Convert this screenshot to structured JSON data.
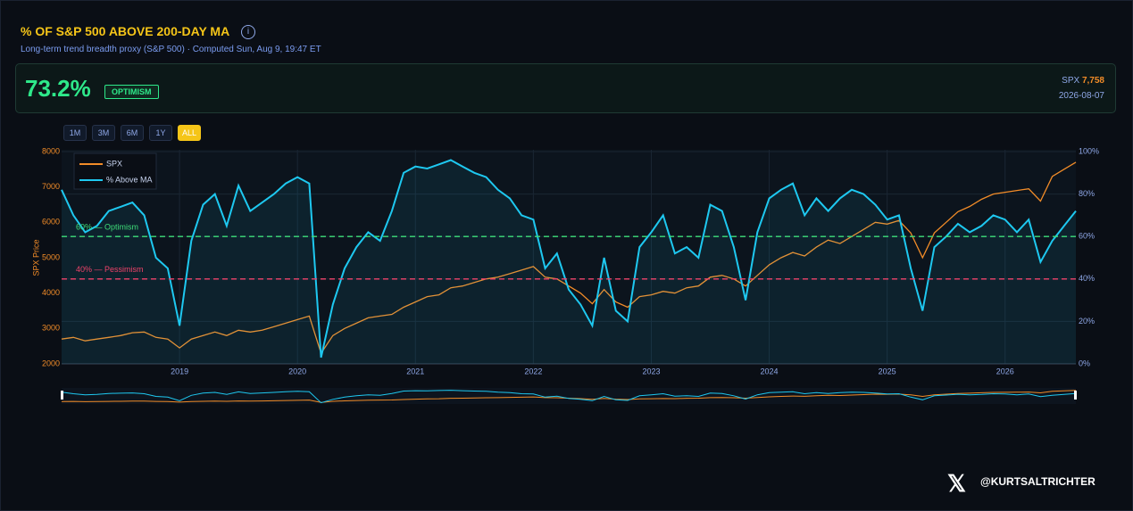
{
  "header": {
    "title": "% OF S&P 500 ABOVE 200-DAY MA",
    "subtitle": "Long-term trend breadth proxy (S&P 500) · Computed Sun, Aug 9, 19:47 ET"
  },
  "summary": {
    "value": "73.2%",
    "badge": "OPTIMISM",
    "spx_label": "SPX",
    "spx_value": "7,758",
    "date": "2026-08-07"
  },
  "range_buttons": [
    "1M",
    "3M",
    "6M",
    "1Y",
    "ALL"
  ],
  "footer": {
    "handle": "@KURTSALTRICHTER"
  },
  "chart_data": {
    "type": "line",
    "ylabel": "SPX Price",
    "x": [
      2018.0,
      2018.1,
      2018.2,
      2018.3,
      2018.4,
      2018.5,
      2018.6,
      2018.7,
      2018.8,
      2018.9,
      2019.0,
      2019.1,
      2019.2,
      2019.3,
      2019.4,
      2019.5,
      2019.6,
      2019.7,
      2019.8,
      2019.9,
      2020.0,
      2020.1,
      2020.2,
      2020.3,
      2020.4,
      2020.5,
      2020.6,
      2020.7,
      2020.8,
      2020.9,
      2021.0,
      2021.1,
      2021.2,
      2021.3,
      2021.4,
      2021.5,
      2021.6,
      2021.7,
      2021.8,
      2021.9,
      2022.0,
      2022.1,
      2022.2,
      2022.3,
      2022.4,
      2022.5,
      2022.6,
      2022.7,
      2022.8,
      2022.9,
      2023.0,
      2023.1,
      2023.2,
      2023.3,
      2023.4,
      2023.5,
      2023.6,
      2023.7,
      2023.8,
      2023.9,
      2024.0,
      2024.1,
      2024.2,
      2024.3,
      2024.4,
      2024.5,
      2024.6,
      2024.7,
      2024.8,
      2024.9,
      2025.0,
      2025.1,
      2025.2,
      2025.3,
      2025.4,
      2025.5,
      2025.6,
      2025.7,
      2025.8,
      2025.9,
      2026.0,
      2026.1,
      2026.2,
      2026.3,
      2026.4,
      2026.5,
      2026.6
    ],
    "series": [
      {
        "name": "SPX",
        "color": "#f28c28",
        "axis": "y",
        "values": [
          2700,
          2750,
          2650,
          2700,
          2750,
          2800,
          2880,
          2900,
          2750,
          2700,
          2450,
          2700,
          2800,
          2900,
          2800,
          2950,
          2900,
          2950,
          3050,
          3150,
          3250,
          3350,
          2300,
          2800,
          3000,
          3150,
          3300,
          3350,
          3400,
          3600,
          3750,
          3900,
          3950,
          4150,
          4200,
          4300,
          4400,
          4450,
          4550,
          4650,
          4750,
          4450,
          4400,
          4200,
          4000,
          3700,
          4100,
          3750,
          3600,
          3900,
          3950,
          4050,
          4000,
          4150,
          4200,
          4450,
          4500,
          4400,
          4200,
          4500,
          4800,
          5000,
          5150,
          5050,
          5300,
          5500,
          5400,
          5600,
          5800,
          6000,
          5950,
          6050,
          5700,
          5000,
          5700,
          6000,
          6300,
          6450,
          6650,
          6800,
          6850,
          6900,
          6950,
          6600,
          7300,
          7500,
          7700
        ]
      },
      {
        "name": "% Above MA",
        "color": "#1ec8f0",
        "axis": "y2",
        "values": [
          82,
          70,
          62,
          65,
          72,
          74,
          76,
          70,
          50,
          45,
          18,
          58,
          75,
          80,
          65,
          84,
          72,
          76,
          80,
          85,
          88,
          85,
          3,
          28,
          45,
          55,
          62,
          58,
          72,
          90,
          93,
          92,
          94,
          96,
          93,
          90,
          88,
          82,
          78,
          70,
          68,
          45,
          52,
          35,
          28,
          18,
          50,
          25,
          20,
          55,
          62,
          70,
          52,
          55,
          50,
          75,
          72,
          55,
          30,
          62,
          78,
          82,
          85,
          70,
          78,
          72,
          78,
          82,
          80,
          75,
          68,
          70,
          45,
          25,
          55,
          60,
          66,
          62,
          65,
          70,
          68,
          62,
          68,
          48,
          58,
          65,
          72
        ]
      }
    ],
    "xlim": [
      2018.0,
      2026.6
    ],
    "xticks": [
      2019,
      2020,
      2021,
      2022,
      2023,
      2024,
      2025,
      2026
    ],
    "ylim": [
      2000,
      8000
    ],
    "yticks": [
      2000,
      3000,
      4000,
      5000,
      6000,
      7000,
      8000
    ],
    "y2lim": [
      0,
      100
    ],
    "y2ticks": [
      {
        "value": 0,
        "label": "0%"
      },
      {
        "value": 20,
        "label": "20%"
      },
      {
        "value": 40,
        "label": "40%"
      },
      {
        "value": 60,
        "label": "60%"
      },
      {
        "value": 80,
        "label": "80%"
      },
      {
        "value": 100,
        "label": "100%"
      }
    ],
    "reference_lines": [
      {
        "value": 60,
        "label": "60% — Optimism",
        "color": "#3ee07a"
      },
      {
        "value": 40,
        "label": "40% — Pessimism",
        "color": "#f0436a"
      }
    ],
    "grid": true,
    "legend": "upper left"
  }
}
